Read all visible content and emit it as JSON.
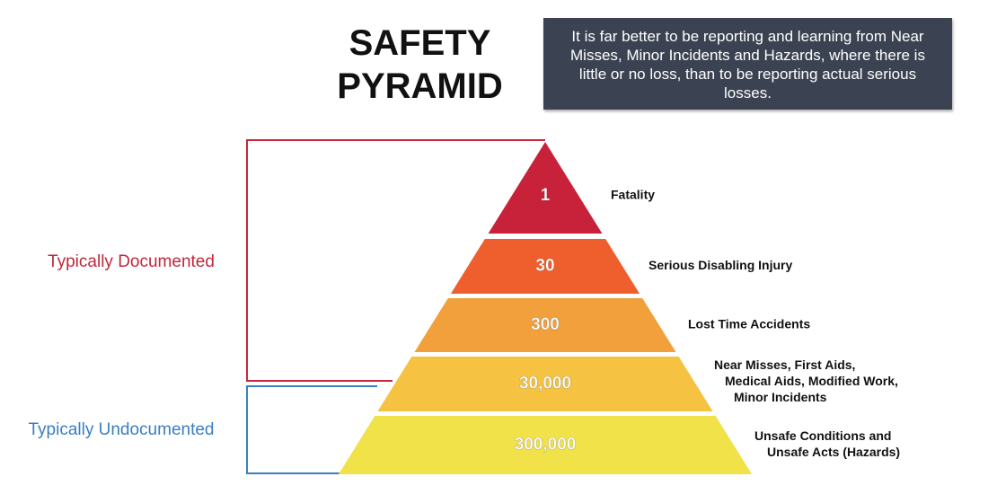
{
  "title": "SAFETY PYRAMID",
  "note": "It is far better to be reporting and learning from Near Misses, Minor Incidents and Hazards, where there is little or no loss, than to be reporting actual serious losses.",
  "documented_label": "Typically Documented",
  "undocumented_label": "Typically Undocumented",
  "levels": [
    {
      "count": "1",
      "description": [
        "Fatality"
      ],
      "color": "#c8223a"
    },
    {
      "count": "30",
      "description": [
        "Serious Disabling Injury"
      ],
      "color": "#ef5f2d"
    },
    {
      "count": "300",
      "description": [
        "Lost Time Accidents"
      ],
      "color": "#f2a03b"
    },
    {
      "count": "30,000",
      "description": [
        "Near Misses, First Aids,",
        "Medical Aids, Modified Work,",
        "Minor Incidents"
      ],
      "color": "#f5c241"
    },
    {
      "count": "300,000",
      "description": [
        "Unsafe Conditions and",
        "Unsafe Acts (Hazards)"
      ],
      "color": "#f1e24a"
    }
  ]
}
